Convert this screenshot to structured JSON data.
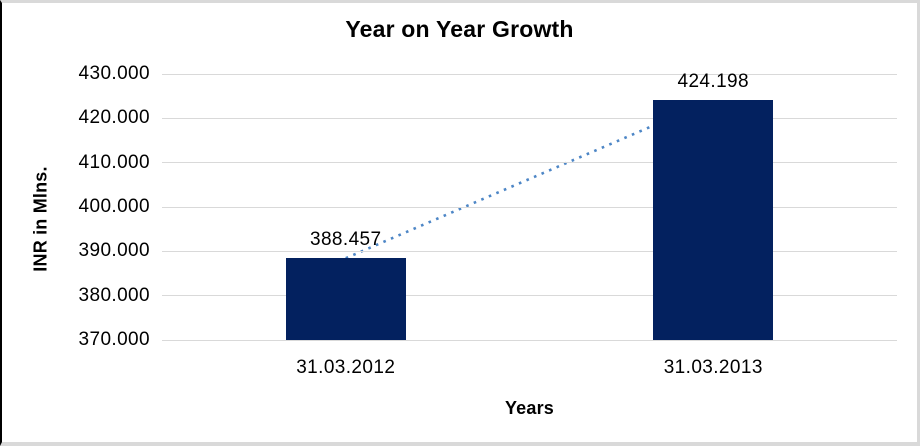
{
  "chart_data": {
    "type": "bar",
    "title": "Year on Year Growth",
    "xlabel": "Years",
    "ylabel": "INR in Mlns.",
    "categories": [
      "31.03.2012",
      "31.03.2013"
    ],
    "values": [
      388.457,
      424.198
    ],
    "data_labels": [
      "388.457",
      "424.198"
    ],
    "yticks": [
      "430.000",
      "420.000",
      "410.000",
      "400.000",
      "390.000",
      "380.000",
      "370.000"
    ],
    "ylim": [
      370,
      430
    ],
    "ytick_step": 10,
    "grid": true,
    "legend": "none",
    "bar_color": "#03215f",
    "gridline_color": "#d9d9d9",
    "trendline": {
      "style": "dotted",
      "color": "#4d86c6",
      "from_value": 388.457,
      "to_value": 424.198
    }
  }
}
